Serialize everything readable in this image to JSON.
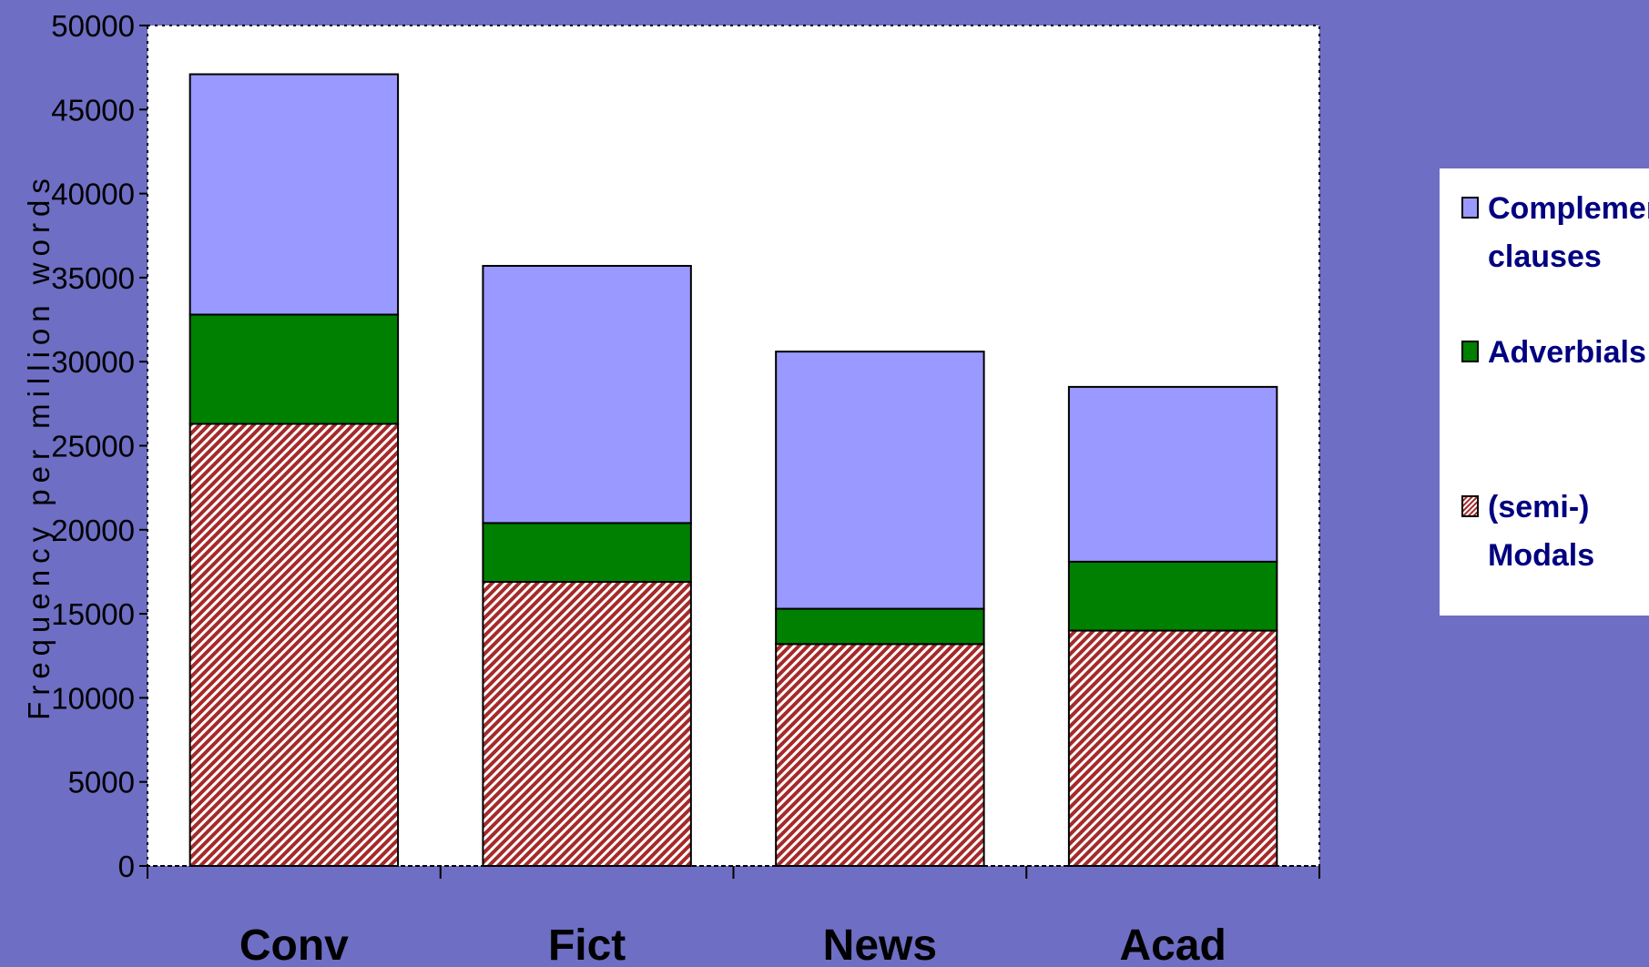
{
  "chart_data": {
    "type": "bar",
    "stacked": true,
    "categories": [
      "Conv",
      "Fict",
      "News",
      "Acad"
    ],
    "series": [
      {
        "name": "(semi-) Modals",
        "legend_lines": [
          "(semi-)",
          "Modals"
        ],
        "values": [
          26300,
          16900,
          13200,
          14000
        ],
        "color": "#A52A2A",
        "pattern": "diagonal-hatch"
      },
      {
        "name": "Adverbials",
        "legend_lines": [
          "Adverbials"
        ],
        "values": [
          6500,
          3500,
          2100,
          4100
        ],
        "color": "#008000"
      },
      {
        "name": "Complement clauses",
        "legend_lines": [
          "Complement",
          "clauses"
        ],
        "values": [
          14300,
          15300,
          15300,
          10400
        ],
        "color": "#9999FF"
      }
    ],
    "title": "",
    "xlabel": "",
    "ylabel": "Frequency per million words",
    "ylim": [
      0,
      50000
    ],
    "yticks": [
      "0",
      "5000",
      "10000",
      "15000",
      "20000",
      "25000",
      "30000",
      "35000",
      "40000",
      "45000",
      "50000"
    ],
    "grid": false,
    "legend_position": "right",
    "colors": {
      "background": "#6E6EC4",
      "plot_area": "#FFFFFF",
      "legend_text": "#000080"
    }
  }
}
